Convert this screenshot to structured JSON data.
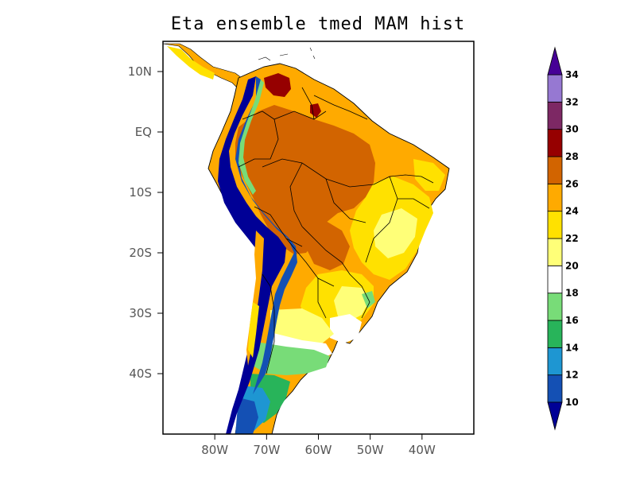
{
  "title": "Eta ensemble tmed MAM hist",
  "map": {
    "projection": "latlon",
    "lon_range": [
      -90,
      -30
    ],
    "lat_range": [
      -50,
      15
    ],
    "lon_ticks": [
      {
        "value": -80,
        "label": "80W"
      },
      {
        "value": -70,
        "label": "70W"
      },
      {
        "value": -60,
        "label": "60W"
      },
      {
        "value": -50,
        "label": "50W"
      },
      {
        "value": -40,
        "label": "40W"
      }
    ],
    "lat_ticks": [
      {
        "value": 10,
        "label": "10N"
      },
      {
        "value": 0,
        "label": "EQ"
      },
      {
        "value": -10,
        "label": "10S"
      },
      {
        "value": -20,
        "label": "20S"
      },
      {
        "value": -30,
        "label": "30S"
      },
      {
        "value": -40,
        "label": "40S"
      }
    ]
  },
  "colorbar": {
    "levels": [
      "10",
      "12",
      "14",
      "16",
      "18",
      "20",
      "22",
      "24",
      "26",
      "28",
      "30",
      "32",
      "34"
    ],
    "colors": [
      "#1450b4",
      "#1e96d2",
      "#28b45a",
      "#78dc78",
      "#ffffff",
      "#ffff78",
      "#ffe100",
      "#ffaa00",
      "#d26400",
      "#960000",
      "#7d2864",
      "#9678d2"
    ],
    "under_color": "#000096",
    "over_color": "#460096"
  }
}
